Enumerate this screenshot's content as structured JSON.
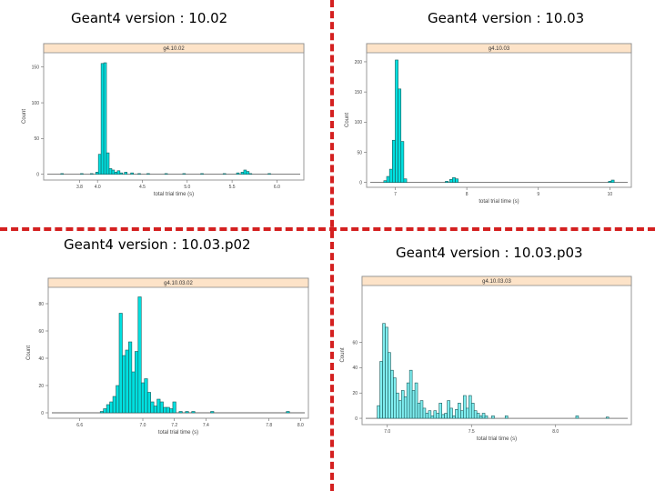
{
  "titles": {
    "top_left": "Geant4 version : 10.02",
    "top_right": "Geant4 version : 10.03",
    "bottom_left": "Geant4 version : 10.03.p02",
    "bottom_right": "Geant4 version : 10.03.p03"
  },
  "colors": {
    "bar_fill_a": "#00e0e0",
    "bar_fill_b": "#80eef0",
    "divider": "#d42020",
    "strip": "#fde3c8"
  },
  "chart_data": [
    {
      "type": "bar",
      "strip": "g4.10.02",
      "xlabel": "total trial time (s)",
      "ylabel": "Count",
      "xlim": [
        3.4,
        6.3
      ],
      "ylim": [
        -8,
        170
      ],
      "xticks": [
        3.8,
        4.0,
        4.5,
        5.0,
        5.5,
        6.0
      ],
      "xtick_labels": [
        "3.8",
        "4.0",
        "4.5",
        "5.0",
        "5.5",
        "6.0"
      ],
      "yticks": [
        0,
        50,
        100,
        150
      ],
      "ytick_labels": [
        "0",
        "50",
        "100",
        "150"
      ],
      "bin_width": 0.03,
      "x": [
        3.59,
        3.81,
        3.92,
        3.98,
        4.01,
        4.04,
        4.07,
        4.1,
        4.13,
        4.16,
        4.19,
        4.22,
        4.25,
        4.3,
        4.37,
        4.45,
        4.55,
        4.75,
        4.95,
        5.15,
        5.4,
        5.55,
        5.6,
        5.63,
        5.66,
        5.69,
        5.9
      ],
      "values": [
        1,
        1,
        1,
        3,
        28,
        155,
        156,
        30,
        8,
        6,
        3,
        5,
        2,
        3,
        2,
        1,
        1,
        1,
        1,
        1,
        1,
        2,
        3,
        6,
        4,
        1,
        1
      ]
    },
    {
      "type": "bar",
      "strip": "g4.10.03",
      "xlabel": "total trial time (s)",
      "ylabel": "Count",
      "xlim": [
        6.6,
        10.3
      ],
      "ylim": [
        -8,
        215
      ],
      "xticks": [
        7,
        8,
        9,
        10
      ],
      "xtick_labels": [
        "7",
        "8",
        "9",
        "10"
      ],
      "yticks": [
        0,
        50,
        100,
        150,
        200
      ],
      "ytick_labels": [
        "0",
        "50",
        "100",
        "150",
        "200"
      ],
      "bin_width": 0.04,
      "x": [
        6.84,
        6.88,
        6.92,
        6.96,
        7.0,
        7.04,
        7.08,
        7.12,
        7.7,
        7.76,
        7.8,
        7.84,
        9.98,
        10.02
      ],
      "values": [
        3,
        10,
        22,
        70,
        203,
        155,
        68,
        6,
        2,
        5,
        8,
        6,
        2,
        4
      ]
    },
    {
      "type": "bar",
      "strip": "g4.10.03.02",
      "xlabel": "total trial time (s)",
      "ylabel": "Count",
      "xlim": [
        6.4,
        8.05
      ],
      "ylim": [
        -4,
        92
      ],
      "xticks": [
        6.6,
        7.0,
        7.2,
        7.4,
        7.8,
        8.0
      ],
      "xtick_labels": [
        "6.6",
        "7.0",
        "7.2",
        "7.4",
        "7.8",
        "8.0"
      ],
      "yticks": [
        0,
        20,
        40,
        60,
        80
      ],
      "ytick_labels": [
        "0",
        "20",
        "40",
        "60",
        "80"
      ],
      "bin_width": 0.02,
      "x": [
        6.73,
        6.75,
        6.77,
        6.79,
        6.81,
        6.83,
        6.85,
        6.87,
        6.89,
        6.91,
        6.93,
        6.95,
        6.97,
        6.99,
        7.01,
        7.03,
        7.05,
        7.07,
        7.09,
        7.11,
        7.13,
        7.15,
        7.17,
        7.19,
        7.23,
        7.27,
        7.31,
        7.43,
        7.91
      ],
      "values": [
        1,
        3,
        6,
        8,
        12,
        20,
        73,
        42,
        46,
        52,
        30,
        45,
        85,
        22,
        25,
        15,
        8,
        5,
        10,
        8,
        4,
        4,
        3,
        8,
        1,
        1,
        1,
        1,
        1
      ]
    },
    {
      "type": "bar",
      "strip": "g4.10.03.03",
      "xlabel": "total trial time (s)",
      "ylabel": "Count",
      "xlim": [
        6.85,
        8.45
      ],
      "ylim": [
        -5,
        105
      ],
      "xticks": [
        7.0,
        7.5,
        8.0
      ],
      "xtick_labels": [
        "7.0",
        "7.5",
        "8.0"
      ],
      "yticks": [
        0,
        20,
        40,
        60
      ],
      "ytick_labels": [
        "0",
        "20",
        "40",
        "60"
      ],
      "bin_width": 0.016,
      "x": [
        6.94,
        6.956,
        6.972,
        6.988,
        7.004,
        7.02,
        7.036,
        7.052,
        7.068,
        7.084,
        7.1,
        7.116,
        7.132,
        7.148,
        7.164,
        7.18,
        7.196,
        7.212,
        7.228,
        7.244,
        7.26,
        7.276,
        7.292,
        7.308,
        7.324,
        7.34,
        7.356,
        7.372,
        7.388,
        7.404,
        7.42,
        7.436,
        7.452,
        7.468,
        7.484,
        7.5,
        7.516,
        7.532,
        7.548,
        7.564,
        7.58,
        7.62,
        7.7,
        8.12,
        8.3
      ],
      "values": [
        10,
        45,
        75,
        72,
        52,
        38,
        32,
        20,
        14,
        22,
        17,
        28,
        38,
        22,
        28,
        12,
        14,
        8,
        4,
        6,
        2,
        6,
        4,
        12,
        3,
        4,
        14,
        8,
        2,
        7,
        12,
        6,
        18,
        8,
        18,
        12,
        6,
        4,
        2,
        4,
        2,
        2,
        2,
        2,
        1
      ]
    }
  ]
}
